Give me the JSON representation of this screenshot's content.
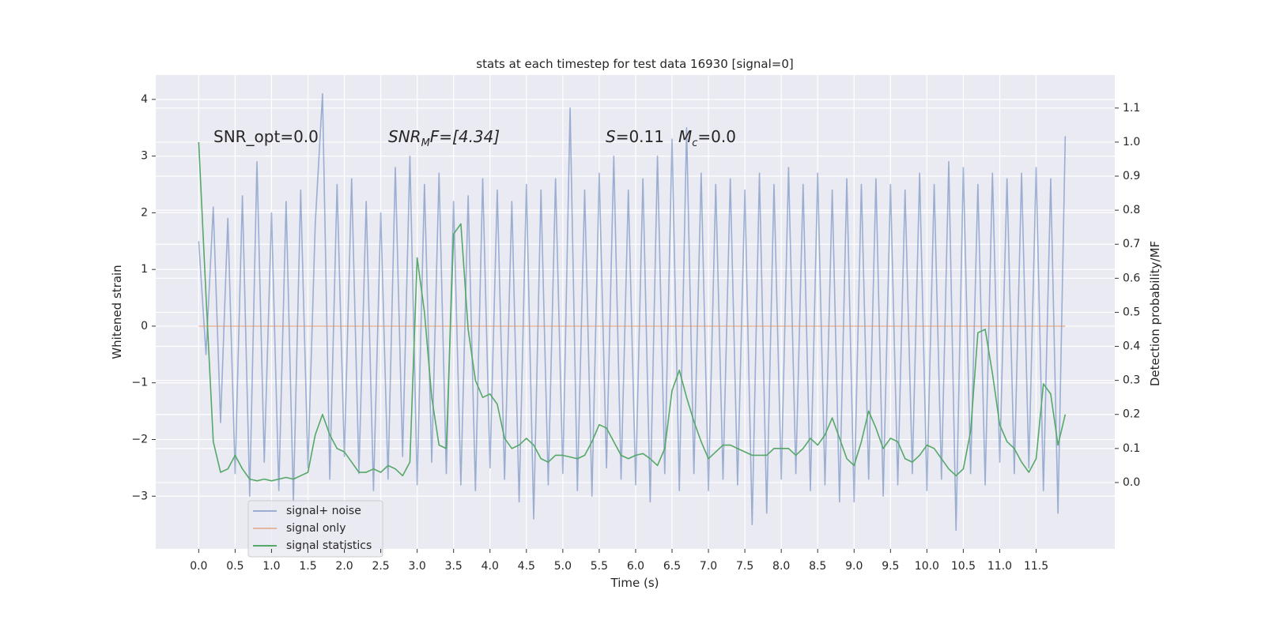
{
  "chart_data": {
    "type": "line",
    "title": "stats at each timestep for test data 16930 [signal=0]",
    "xlabel": "Time (s)",
    "ylabel": "Whitened strain",
    "y2label": "Detection probability/MF",
    "annotations": [
      {
        "text": "SNR_opt=0.0"
      },
      {
        "base": "SNR",
        "sub": "M",
        "tail": "F=[4.34]"
      },
      {
        "base": "S",
        "tail": "=0.11"
      },
      {
        "base": "M",
        "sub": "c",
        "tail": "=0.0"
      }
    ],
    "xlim": [
      -0.59,
      12.58
    ],
    "ylim": [
      -3.93,
      4.43
    ],
    "y2lim": [
      -0.195,
      1.197
    ],
    "xticks": [
      {
        "value": 0,
        "label": "0.0"
      },
      {
        "value": 0.5,
        "label": "0.5"
      },
      {
        "value": 1,
        "label": "1.0"
      },
      {
        "value": 1.5,
        "label": "1.5"
      },
      {
        "value": 2,
        "label": "2.0"
      },
      {
        "value": 2.5,
        "label": "2.5"
      },
      {
        "value": 3,
        "label": "3.0"
      },
      {
        "value": 3.5,
        "label": "3.5"
      },
      {
        "value": 4,
        "label": "4.0"
      },
      {
        "value": 4.5,
        "label": "4.5"
      },
      {
        "value": 5,
        "label": "5.0"
      },
      {
        "value": 5.5,
        "label": "5.5"
      },
      {
        "value": 6,
        "label": "6.0"
      },
      {
        "value": 6.5,
        "label": "6.5"
      },
      {
        "value": 7,
        "label": "7.0"
      },
      {
        "value": 7.5,
        "label": "7.5"
      },
      {
        "value": 8,
        "label": "8.0"
      },
      {
        "value": 8.5,
        "label": "8.5"
      },
      {
        "value": 9,
        "label": "9.0"
      },
      {
        "value": 9.5,
        "label": "9.5"
      },
      {
        "value": 10,
        "label": "10.0"
      },
      {
        "value": 10.5,
        "label": "10.5"
      },
      {
        "value": 11,
        "label": "11.0"
      },
      {
        "value": 11.5,
        "label": "11.5"
      }
    ],
    "yticks": [
      {
        "value": -3,
        "label": "−3"
      },
      {
        "value": -2,
        "label": "−2"
      },
      {
        "value": -1,
        "label": "−1"
      },
      0,
      1,
      2,
      3,
      4
    ],
    "y2ticks": [
      {
        "value": 0,
        "label": "0.0"
      },
      {
        "value": 0.1,
        "label": "0.1"
      },
      {
        "value": 0.2,
        "label": "0.2"
      },
      {
        "value": 0.3,
        "label": "0.3"
      },
      {
        "value": 0.4,
        "label": "0.4"
      },
      {
        "value": 0.5,
        "label": "0.5"
      },
      {
        "value": 0.6,
        "label": "0.6"
      },
      {
        "value": 0.7,
        "label": "0.7"
      },
      {
        "value": 0.8,
        "label": "0.8"
      },
      {
        "value": 0.9,
        "label": "0.9"
      },
      {
        "value": 1,
        "label": "1.0"
      },
      {
        "value": 1.1,
        "label": "1.1"
      }
    ],
    "grid": true,
    "legend": "lower left",
    "x": [
      0,
      0.1,
      0.2,
      0.3,
      0.4,
      0.5,
      0.6,
      0.7,
      0.8,
      0.9,
      1,
      1.1,
      1.2,
      1.3,
      1.4,
      1.5,
      1.6,
      1.7,
      1.8,
      1.9,
      2,
      2.1,
      2.2,
      2.3,
      2.4,
      2.5,
      2.6,
      2.7,
      2.8,
      2.9,
      3,
      3.1,
      3.2,
      3.3,
      3.4,
      3.5,
      3.6,
      3.7,
      3.8,
      3.9,
      4,
      4.1,
      4.2,
      4.3,
      4.4,
      4.5,
      4.6,
      4.7,
      4.8,
      4.9,
      5,
      5.1,
      5.2,
      5.3,
      5.4,
      5.5,
      5.6,
      5.7,
      5.8,
      5.9,
      6,
      6.1,
      6.2,
      6.3,
      6.4,
      6.5,
      6.6,
      6.7,
      6.8,
      6.9,
      7,
      7.1,
      7.2,
      7.3,
      7.4,
      7.5,
      7.6,
      7.7,
      7.8,
      7.9,
      8,
      8.1,
      8.2,
      8.3,
      8.4,
      8.5,
      8.6,
      8.7,
      8.8,
      8.9,
      9,
      9.1,
      9.2,
      9.3,
      9.4,
      9.5,
      9.6,
      9.7,
      9.8,
      9.9,
      10,
      10.1,
      10.2,
      10.3,
      10.4,
      10.5,
      10.6,
      10.7,
      10.8,
      10.9,
      11,
      11.1,
      11.2,
      11.3,
      11.4,
      11.5,
      11.6,
      11.7,
      11.8,
      11.9
    ],
    "series": [
      {
        "name": "signal+ noise",
        "color": "#4c72b0",
        "axis": "y",
        "values": [
          1.5,
          -0.5,
          2.1,
          -1.7,
          1.9,
          -2.6,
          2.3,
          -3.0,
          2.9,
          -2.4,
          2.0,
          -2.9,
          2.2,
          -3.1,
          2.4,
          -2.5,
          1.8,
          4.1,
          -2.7,
          2.5,
          -2.3,
          2.6,
          -2.6,
          2.2,
          -2.9,
          2.0,
          -2.7,
          2.8,
          -2.3,
          3.0,
          -2.8,
          2.5,
          -2.4,
          2.7,
          -2.6,
          2.2,
          -2.8,
          2.3,
          -2.9,
          2.6,
          -2.5,
          2.4,
          -2.7,
          2.2,
          -3.1,
          2.5,
          -3.4,
          2.4,
          -2.8,
          2.6,
          -2.6,
          3.85,
          -2.9,
          2.4,
          -3.0,
          2.7,
          -2.5,
          3.0,
          -2.7,
          2.4,
          -2.8,
          2.6,
          -3.1,
          3.0,
          -2.6,
          3.3,
          -2.9,
          3.5,
          -2.6,
          2.7,
          -2.9,
          2.5,
          -2.7,
          2.6,
          -2.8,
          2.4,
          -3.5,
          2.7,
          -3.3,
          2.5,
          -2.7,
          2.8,
          -2.6,
          2.5,
          -2.9,
          2.7,
          -2.8,
          2.4,
          -3.1,
          2.6,
          -3.1,
          2.5,
          -2.7,
          2.6,
          -3.0,
          2.5,
          -2.8,
          2.4,
          -2.6,
          2.7,
          -2.9,
          2.5,
          -2.7,
          2.9,
          -3.6,
          2.8,
          -2.6,
          2.5,
          -2.8,
          2.7,
          -2.4,
          2.6,
          -2.6,
          2.7,
          -2.5,
          2.8,
          -2.9,
          2.6,
          -3.3,
          3.35
        ]
      },
      {
        "name": "signal only",
        "color": "#dd8452",
        "axis": "y",
        "values": [
          0,
          0,
          0,
          0,
          0,
          0,
          0,
          0,
          0,
          0,
          0,
          0,
          0,
          0,
          0,
          0,
          0,
          0,
          0,
          0,
          0,
          0,
          0,
          0,
          0,
          0,
          0,
          0,
          0,
          0,
          0,
          0,
          0,
          0,
          0,
          0,
          0,
          0,
          0,
          0,
          0,
          0,
          0,
          0,
          0,
          0,
          0,
          0,
          0,
          0,
          0,
          0,
          0,
          0,
          0,
          0,
          0,
          0,
          0,
          0,
          0,
          0,
          0,
          0,
          0,
          0,
          0,
          0,
          0,
          0,
          0,
          0,
          0,
          0,
          0,
          0,
          0,
          0,
          0,
          0,
          0,
          0,
          0,
          0,
          0,
          0,
          0,
          0,
          0,
          0,
          0,
          0,
          0,
          0,
          0,
          0,
          0,
          0,
          0,
          0,
          0,
          0,
          0,
          0,
          0,
          0,
          0,
          0,
          0,
          0,
          0,
          0,
          0,
          0,
          0,
          0,
          0,
          0,
          0,
          0
        ]
      },
      {
        "name": "signal statistics",
        "color": "#55a868",
        "axis": "y2",
        "values": [
          1.0,
          0.55,
          0.12,
          0.03,
          0.04,
          0.08,
          0.04,
          0.01,
          0.005,
          0.01,
          0.005,
          0.01,
          0.015,
          0.01,
          0.02,
          0.03,
          0.14,
          0.2,
          0.14,
          0.1,
          0.09,
          0.06,
          0.03,
          0.03,
          0.04,
          0.03,
          0.05,
          0.04,
          0.02,
          0.06,
          0.66,
          0.5,
          0.25,
          0.11,
          0.1,
          0.73,
          0.76,
          0.45,
          0.3,
          0.25,
          0.26,
          0.23,
          0.13,
          0.1,
          0.11,
          0.13,
          0.11,
          0.07,
          0.06,
          0.08,
          0.08,
          0.075,
          0.07,
          0.08,
          0.12,
          0.17,
          0.16,
          0.12,
          0.08,
          0.07,
          0.08,
          0.085,
          0.07,
          0.05,
          0.1,
          0.27,
          0.33,
          0.25,
          0.18,
          0.12,
          0.07,
          0.09,
          0.11,
          0.11,
          0.1,
          0.09,
          0.08,
          0.08,
          0.08,
          0.1,
          0.1,
          0.1,
          0.08,
          0.1,
          0.13,
          0.11,
          0.14,
          0.19,
          0.13,
          0.07,
          0.05,
          0.12,
          0.21,
          0.16,
          0.1,
          0.13,
          0.12,
          0.07,
          0.06,
          0.08,
          0.11,
          0.1,
          0.07,
          0.04,
          0.02,
          0.04,
          0.15,
          0.44,
          0.45,
          0.32,
          0.17,
          0.12,
          0.1,
          0.06,
          0.03,
          0.07,
          0.29,
          0.26,
          0.11,
          0.2
        ]
      }
    ]
  }
}
